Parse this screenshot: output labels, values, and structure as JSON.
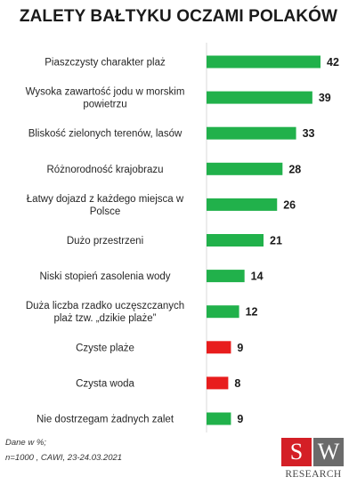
{
  "chart_data": {
    "type": "bar",
    "orientation": "horizontal",
    "title": "ZALETY BAŁTYKU OCZAMI POLAKÓW",
    "categories": [
      [
        "Piaszczysty charakter plaż"
      ],
      [
        "Wysoka zawartość jodu w morskim",
        "powietrzu"
      ],
      [
        "Bliskość zielonych terenów, lasów"
      ],
      [
        "Różnorodność krajobrazu"
      ],
      [
        "Łatwy dojazd z każdego miejsca w",
        "Polsce"
      ],
      [
        "Dużo przestrzeni"
      ],
      [
        "Niski stopień zasolenia wody"
      ],
      [
        "Duża liczba rzadko uczęszczanych",
        "plaż tzw. „dzikie plaże”"
      ],
      [
        "Czyste plaże"
      ],
      [
        "Czysta woda"
      ],
      [
        "Nie dostrzegam żadnych zalet"
      ]
    ],
    "values": [
      42,
      39,
      33,
      28,
      26,
      21,
      14,
      12,
      9,
      8,
      9
    ],
    "bar_colors": [
      "#21b14b",
      "#21b14b",
      "#21b14b",
      "#21b14b",
      "#21b14b",
      "#21b14b",
      "#21b14b",
      "#21b14b",
      "#e81d1d",
      "#e81d1d",
      "#21b14b"
    ],
    "xlim": [
      0,
      42
    ],
    "grid": false,
    "legend": "none"
  },
  "footer": {
    "line1": "Dane w %;",
    "line2": "n=1000 , CAWI, 23-24.03.2021"
  },
  "logo": {
    "s": "S",
    "w": "W",
    "text": "RESEARCH"
  }
}
